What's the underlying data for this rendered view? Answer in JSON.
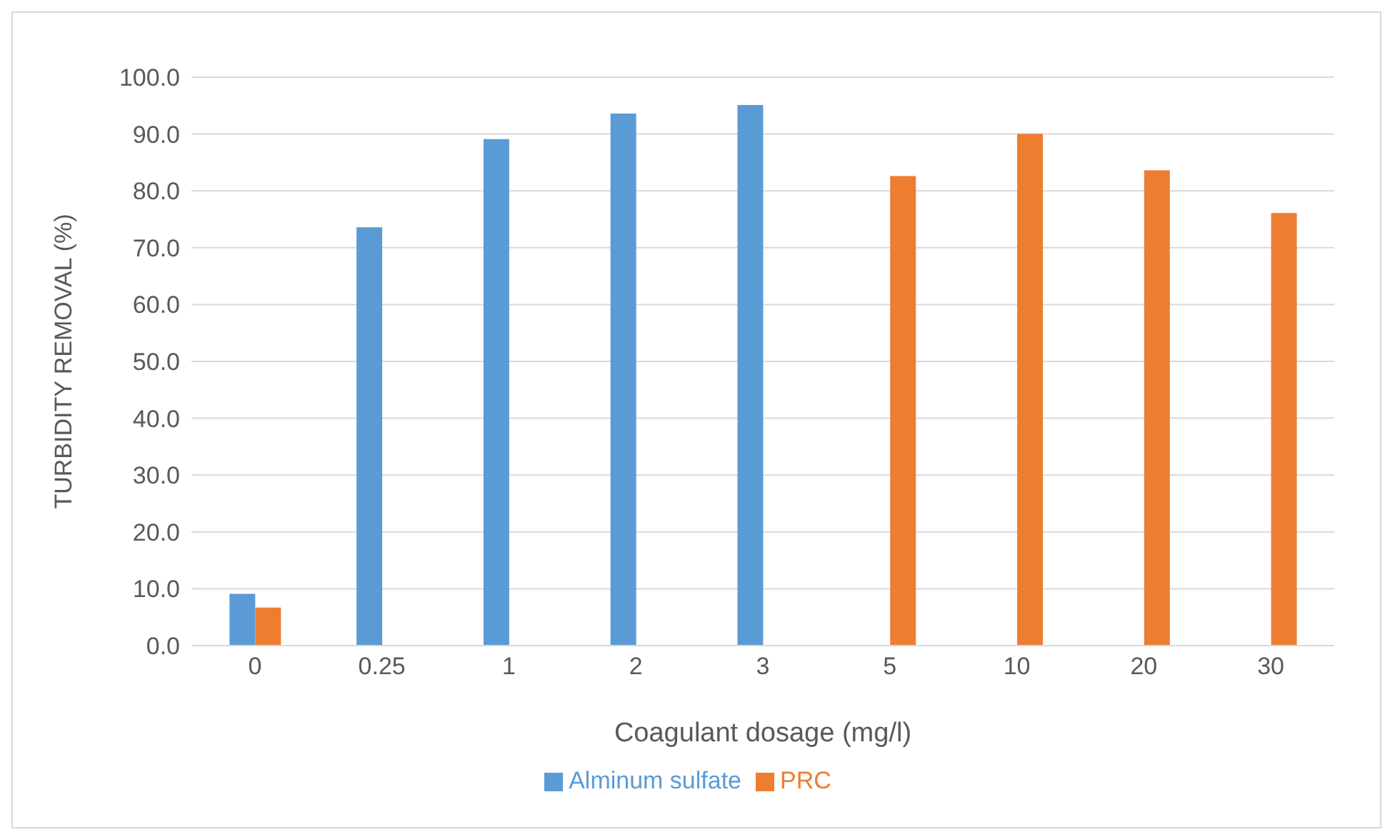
{
  "chart_data": {
    "type": "bar",
    "xlabel": "Coagulant dosage (mg/l)",
    "ylabel": "TURBIDITY REMOVAL (%)",
    "categories": [
      "0",
      "0.25",
      "1",
      "2",
      "3",
      "5",
      "10",
      "20",
      "30"
    ],
    "series": [
      {
        "name": "Alminum sulfate",
        "color": "#5b9bd5",
        "values": [
          9.1,
          73.6,
          89.1,
          93.6,
          95.1,
          null,
          null,
          null,
          null
        ]
      },
      {
        "name": "PRC",
        "color": "#ed7d31",
        "values": [
          6.7,
          null,
          null,
          null,
          null,
          82.6,
          90.0,
          83.6,
          76.1
        ]
      }
    ],
    "ylim": [
      0,
      100
    ],
    "yticks": [
      {
        "value": 0,
        "label": "0.0"
      },
      {
        "value": 10,
        "label": "10.0"
      },
      {
        "value": 20,
        "label": "20.0"
      },
      {
        "value": 30,
        "label": "30.0"
      },
      {
        "value": 40,
        "label": "40.0"
      },
      {
        "value": 50,
        "label": "50.0"
      },
      {
        "value": 60,
        "label": "60.0"
      },
      {
        "value": 70,
        "label": "70.0"
      },
      {
        "value": 80,
        "label": "80.0"
      },
      {
        "value": 90,
        "label": "90.0"
      },
      {
        "value": 100,
        "label": "100.0"
      }
    ],
    "grid": "y",
    "legend": "bottom"
  }
}
